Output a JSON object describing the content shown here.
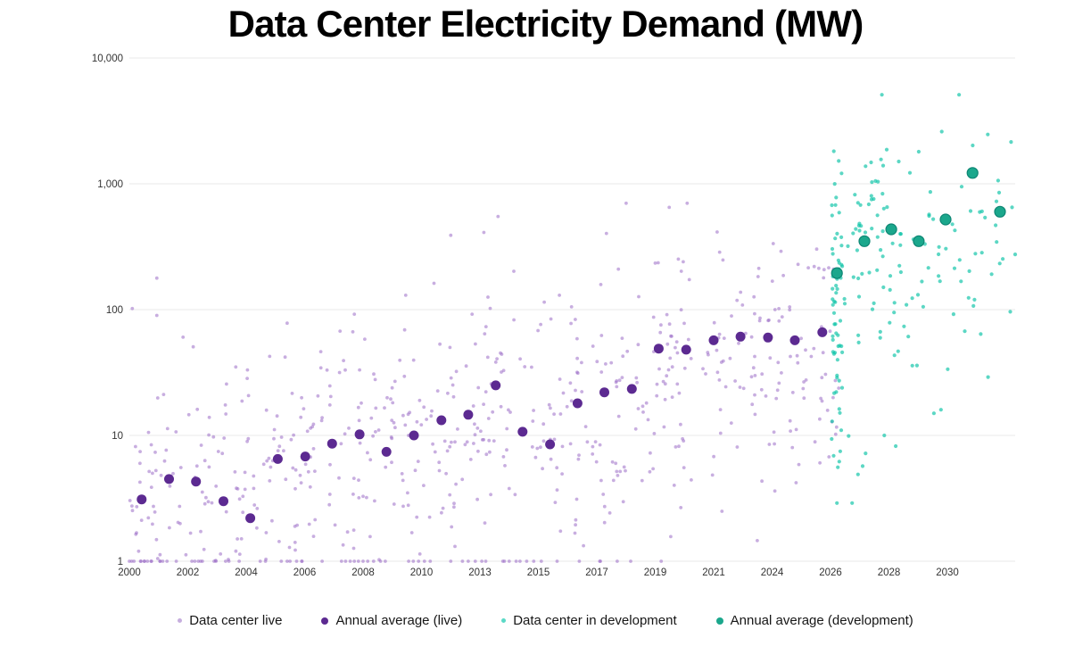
{
  "chart_data": {
    "type": "scatter",
    "title": "Data Center Electricity Demand (MW)",
    "y_axis": {
      "scale": "log",
      "range": [
        1,
        10000
      ],
      "tick_labels": [
        "1",
        "10",
        "100",
        "1,000",
        "10,000"
      ],
      "grid": "horizontal-only"
    },
    "x_axis": {
      "type": "ordinal-time",
      "spacing": "uniform",
      "tick_labels": [
        "2000",
        "2002",
        "2004",
        "2006",
        "2008",
        "2010",
        "2013",
        "2015",
        "2017",
        "2019",
        "2021",
        "2024",
        "2026",
        "2028",
        "2030"
      ]
    },
    "legend_position": "bottom-center",
    "cloud_seed": 1337,
    "series": [
      {
        "id": "live-cloud",
        "name": "Data center live",
        "type": "scatter-cloud",
        "color": "#9b6cc7",
        "opacity": 0.55,
        "radius": 1.9,
        "legend_color": "#c6aede",
        "legend_size": 5,
        "clamp": [
          1,
          700
        ],
        "cloud_buckets": [
          [
            0,
            1,
            50,
            0.5,
            0.55
          ],
          [
            1,
            2,
            50,
            0.55,
            0.55
          ],
          [
            2,
            3,
            50,
            0.7,
            0.5
          ],
          [
            3,
            4,
            50,
            0.85,
            0.5
          ],
          [
            4,
            5,
            50,
            0.95,
            0.5
          ],
          [
            5,
            6,
            50,
            1.05,
            0.5
          ],
          [
            6,
            7,
            50,
            1.1,
            0.52
          ],
          [
            7,
            8,
            50,
            1.15,
            0.52
          ],
          [
            8,
            9,
            50,
            1.3,
            0.52
          ],
          [
            9,
            10,
            50,
            1.45,
            0.5
          ],
          [
            10,
            11,
            50,
            1.55,
            0.48
          ],
          [
            11,
            12.15,
            55,
            1.6,
            0.5
          ]
        ],
        "baseline_value": 1,
        "baseline_t": [
          0.0,
          0.04,
          0.08,
          0.2,
          0.26,
          0.31,
          0.38,
          1.07,
          1.12,
          1.18,
          1.25,
          1.45,
          2.24,
          2.33,
          2.6,
          2.75,
          2.95,
          3.3,
          3.63,
          3.7,
          3.78,
          3.85,
          3.92,
          4.0,
          4.08,
          4.18,
          4.3,
          4.38,
          4.78,
          4.86,
          4.95,
          5.05,
          5.15,
          5.7,
          5.8,
          5.92,
          6.1,
          6.42,
          6.5,
          6.62,
          6.8,
          6.92,
          7.05,
          7.32,
          7.7,
          8.05,
          8.35,
          8.58
        ],
        "outlier_points": [
          [
            0.05,
            102
          ],
          [
            0.47,
            178
          ],
          [
            0.47,
            90
          ],
          [
            2.7,
            78
          ],
          [
            3.85,
            92
          ],
          [
            4.73,
            130
          ],
          [
            5.5,
            390
          ],
          [
            6.31,
            550
          ],
          [
            7.36,
            130
          ],
          [
            8.37,
            210
          ],
          [
            9.0,
            234
          ],
          [
            9.24,
            650
          ],
          [
            9.48,
            240
          ],
          [
            10.06,
            414
          ],
          [
            10.76,
            183
          ],
          [
            11.02,
            335
          ],
          [
            11.05,
            100
          ],
          [
            11.3,
            105
          ],
          [
            11.62,
            215
          ],
          [
            11.72,
            220
          ],
          [
            11.8,
            213
          ],
          [
            11.89,
            208
          ],
          [
            11.97,
            215
          ],
          [
            12.05,
            210
          ]
        ]
      },
      {
        "id": "live-avg",
        "name": "Annual average (live)",
        "type": "scatter",
        "color": "#5c2a91",
        "radius": 5.5,
        "legend_color": "#5c2a91",
        "legend_size": 8,
        "years": [
          2000,
          2001,
          2002,
          2003,
          2004,
          2005,
          2006,
          2007,
          2008,
          2009,
          2010,
          2011,
          2012,
          2013,
          2014,
          2015,
          2016,
          2017,
          2018,
          2019,
          2020,
          2021,
          2022,
          2023,
          2024,
          2025
        ],
        "points": [
          [
            0.21,
            3.1
          ],
          [
            0.68,
            4.5
          ],
          [
            1.14,
            4.3
          ],
          [
            1.61,
            3.0
          ],
          [
            2.07,
            2.2
          ],
          [
            2.54,
            6.5
          ],
          [
            3.01,
            6.8
          ],
          [
            3.47,
            8.6
          ],
          [
            3.94,
            10.2
          ],
          [
            4.4,
            7.4
          ],
          [
            4.87,
            10.0
          ],
          [
            5.34,
            13.2
          ],
          [
            5.8,
            14.6
          ],
          [
            6.27,
            25
          ],
          [
            6.73,
            10.7
          ],
          [
            7.2,
            8.5
          ],
          [
            7.67,
            18
          ],
          [
            8.13,
            22
          ],
          [
            8.6,
            23.4
          ],
          [
            9.06,
            49
          ],
          [
            9.53,
            48
          ],
          [
            10.0,
            57
          ],
          [
            10.46,
            61
          ],
          [
            10.93,
            60
          ],
          [
            11.39,
            57
          ],
          [
            11.86,
            66
          ]
        ]
      },
      {
        "id": "dev-cloud",
        "name": "Data center in development",
        "type": "scatter-cloud",
        "color": "#0fc4a8",
        "opacity": 0.68,
        "radius": 2.1,
        "legend_color": "#5bd9c6",
        "legend_size": 5,
        "clamp": [
          2.8,
          2600
        ],
        "cloud_buckets": [
          [
            12.02,
            12.22,
            64,
            2.0,
            0.55
          ],
          [
            12.22,
            13.6,
            72,
            2.35,
            0.5
          ],
          [
            13.6,
            15.12,
            46,
            2.4,
            0.55
          ]
        ],
        "outlier_points": [
          [
            12.88,
            5100
          ],
          [
            14.2,
            5100
          ],
          [
            13.51,
            1800
          ],
          [
            12.14,
            1520
          ],
          [
            12.6,
            1380
          ],
          [
            12.19,
            1210
          ],
          [
            13.48,
            36
          ],
          [
            13.77,
            15
          ],
          [
            13.89,
            16
          ],
          [
            15.16,
            275
          ],
          [
            12.6,
            7.2
          ],
          [
            12.15,
            6.2
          ],
          [
            12.55,
            5.7
          ],
          [
            12.47,
            4.9
          ],
          [
            12.11,
            2.9
          ],
          [
            12.37,
            2.9
          ],
          [
            12.92,
            10
          ],
          [
            12.31,
            9.9
          ]
        ]
      },
      {
        "id": "dev-avg",
        "name": "Annual average (development)",
        "type": "scatter",
        "color": "#1ba78c",
        "stroke": "#0d8573",
        "radius": 6,
        "legend_color": "#1ba78c",
        "legend_size": 8,
        "years": [
          2026,
          2027,
          2028,
          2029,
          2030,
          2031,
          2032
        ],
        "points": [
          [
            12.11,
            195
          ],
          [
            12.58,
            350
          ],
          [
            13.04,
            435
          ],
          [
            13.51,
            350
          ],
          [
            13.97,
            520
          ],
          [
            14.43,
            1220
          ],
          [
            14.9,
            600
          ]
        ]
      }
    ]
  }
}
